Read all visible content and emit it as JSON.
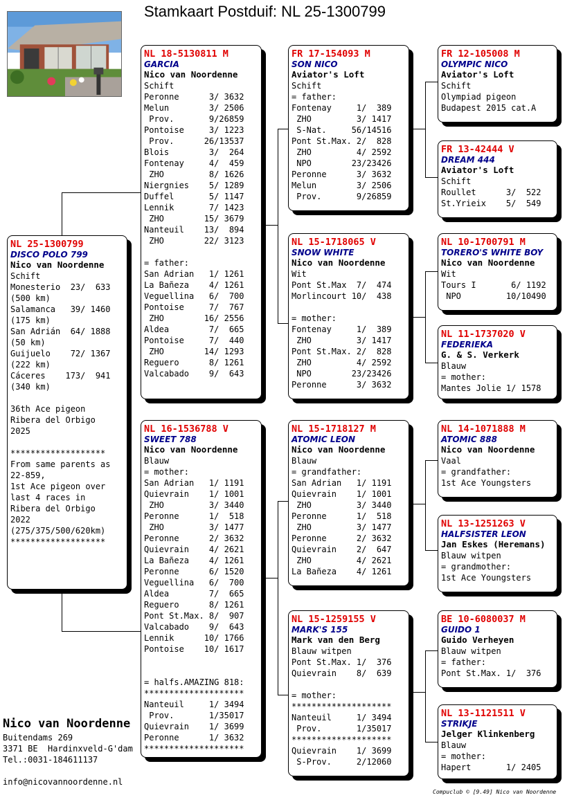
{
  "title": "Stamkaart Postduif: NL  25-1300799",
  "breeder": {
    "name": "Nico van Noordenne",
    "lines": [
      "Buitendams 269",
      "3371 BE  Hardinxveld-G'dam",
      "Tel.:0031-184611137",
      "",
      "info@nicovannoordenne.nl"
    ]
  },
  "footer": "Compuclub © [9.49]  Nico van Noordenne",
  "cards": {
    "main": {
      "header": "NL  25-1300799",
      "name": "DISCO POLO 799",
      "owner": "Nico van Noordenne",
      "lines": [
        "Schift",
        "Monesterio  23/  633",
        "(500 km)",
        "Salamanca   39/ 1460",
        "(175 km)",
        "San Adrián  64/ 1888",
        "(50 km)",
        "Guijuelo    72/ 1367",
        "(222 km)",
        "Cáceres    173/  941",
        "(340 km)",
        "",
        "36th Ace pigeon",
        "Ribera del Orbigo",
        "2025",
        "",
        "*******************",
        "From same parents as",
        "22-859,",
        "1st Ace pigeon over",
        "last 4 races in",
        "Ribera del Orbigo",
        "2022",
        "(275/375/500/620km)",
        "*******************"
      ]
    },
    "father": {
      "header": "NL  18-5130811 M",
      "name": "GARCIA",
      "owner": "Nico van Noordenne",
      "lines": [
        "Schift",
        "Peronne      3/ 3632",
        "Melun        3/ 2506",
        " Prov.       9/26859",
        "Pontoise     3/ 1223",
        " Prov.      26/13537",
        "Blois        3/  264",
        "Fontenay     4/  459",
        " ZHO         8/ 1626",
        "Niergnies    5/ 1289",
        "Duffel       5/ 1147",
        "Lennik       7/ 1423",
        " ZHO        15/ 3679",
        "Nanteuil    13/  894",
        " ZHO        22/ 3123",
        "",
        "= father:",
        "San Adrian   1/ 1261",
        "La Bañeza    4/ 1261",
        "Veguellina   6/  700",
        "Pontoise     7/  767",
        " ZHO        16/ 2556",
        "Aldea        7/  665",
        "Pontoise     7/  440",
        " ZHO        14/ 1293",
        "Reguero      8/ 1261",
        "Valcabado    9/  643"
      ]
    },
    "mother": {
      "header": "NL  16-1536788 V",
      "name": "SWEET 788",
      "owner": "Nico van Noordenne",
      "lines": [
        "Blauw",
        "= mother:",
        "San Adrian   1/ 1191",
        "Quievrain    1/ 1001",
        " ZHO         3/ 3440",
        "Peronne      1/  518",
        " ZHO         3/ 1477",
        "Peronne      2/ 3632",
        "Quievrain    4/ 2621",
        "La Bañeza    4/ 1261",
        "Peronne      6/ 1520",
        "Veguellina   6/  700",
        "Aldea        7/  665",
        "Reguero      8/ 1261",
        "Pont St.Max. 8/  907",
        "Valcabado    9/  643",
        "Lennik      10/ 1766",
        "Pontoise    10/ 1617",
        "",
        "",
        "= halfs.AMAZING 818:",
        "********************",
        "Nanteuil     1/ 3494",
        " Prov.       1/35017",
        "Quievrain    1/ 3699",
        "Peronne      1/ 3632",
        "********************"
      ]
    },
    "ff": {
      "header": "FR  17-154093 M",
      "name": "SON NICO",
      "owner": "Aviator's Loft",
      "lines": [
        "Schift",
        "= father:",
        "Fontenay     1/  389",
        " ZHO         3/ 1417",
        " S-Nat.     56/14516",
        "Pont St.Max. 2/  828",
        " ZHO         4/ 2592",
        " NPO        23/23426",
        "Peronne      3/ 3632",
        "Melun        3/ 2506",
        " Prov.       9/26859"
      ]
    },
    "fm": {
      "header": "NL  15-1718065 V",
      "name": "SNOW WHITE",
      "owner": "Nico van Noordenne",
      "lines": [
        "Wit",
        "Pont St.Max  7/  474",
        "Morlincourt 10/  438",
        "",
        "= mother:",
        "Fontenay     1/  389",
        " ZHO         3/ 1417",
        "Pont St.Max. 2/  828",
        " ZHO         4/ 2592",
        " NPO        23/23426",
        "Peronne      3/ 3632"
      ]
    },
    "mf": {
      "header": "NL  15-1718127 M",
      "name": "ATOMIC LEON",
      "owner": "Nico van Noordenne",
      "lines": [
        "Blauw",
        "= grandfather:",
        "San Adrian   1/ 1191",
        "Quievrain    1/ 1001",
        " ZHO         3/ 3440",
        "Peronne      1/  518",
        " ZHO         3/ 1477",
        "Peronne      2/ 3632",
        "Quievrain    2/  647",
        " ZHO         4/ 2621",
        "La Bañeza    4/ 1261"
      ]
    },
    "mm": {
      "header": "NL  15-1259155 V",
      "name": "MARK'S 155",
      "owner": "Mark van den Berg",
      "lines": [
        "Blauw witpen",
        "Pont St.Max. 1/  376",
        "Quievrain    8/  639",
        "",
        "= mother:",
        "********************",
        "Nanteuil     1/ 3494",
        " Prov.       1/35017",
        "********************",
        "Quievrain    1/ 3699",
        " S-Prov.     2/12060"
      ]
    },
    "fff": {
      "header": "FR  12-105008 M",
      "name": "OLYMPIC NICO",
      "owner": "Aviator's Loft",
      "lines": [
        "Schift",
        "Olympiad pigeon",
        "Budapest 2015 cat.A"
      ]
    },
    "ffm": {
      "header": "FR  13-42444 V",
      "name": "DREAM 444",
      "owner": "Aviator's Loft",
      "lines": [
        "Schift",
        "Roullet      3/  522",
        "St.Yrieix    5/  549"
      ]
    },
    "fmf": {
      "header": "NL  10-1700791 M",
      "name": "TORERO'S WHITE BOY",
      "owner": "Nico van Noordenne",
      "lines": [
        "Wit",
        "Tours I       6/ 1192",
        " NPO         10/10490"
      ]
    },
    "fmm": {
      "header": "NL  11-1737020 V",
      "name": "FEDERIEKA",
      "owner": "G. & S. Verkerk",
      "lines": [
        "Blauw",
        "= mother:",
        "Mantes Jolie 1/ 1578"
      ]
    },
    "mff": {
      "header": "NL  14-1071888 M",
      "name": "ATOMIC 888",
      "owner": "Nico van Noordenne",
      "lines": [
        "Vaal",
        "= grandfather:",
        "1st Ace Youngsters"
      ]
    },
    "mfm": {
      "header": "NL  13-1251263 V",
      "name": "HALFSISTER LEON",
      "owner": "Jan Eskes (Heremans)",
      "lines": [
        "Blauw witpen",
        "= grandmother:",
        "1st Ace Youngsters"
      ]
    },
    "mmf": {
      "header": "BE  10-6080037 M",
      "name": "GUIDO 1",
      "owner": "Guido Verheyen",
      "lines": [
        "Blauw witpen",
        "= father:",
        "Pont St.Max. 1/  376"
      ]
    },
    "mmm": {
      "header": "NL  13-1121511 V",
      "name": "STRIKJE",
      "owner": "Jelger Klinkenberg",
      "lines": [
        "Blauw",
        "= mother:",
        "Hapert       1/ 2405"
      ]
    }
  }
}
